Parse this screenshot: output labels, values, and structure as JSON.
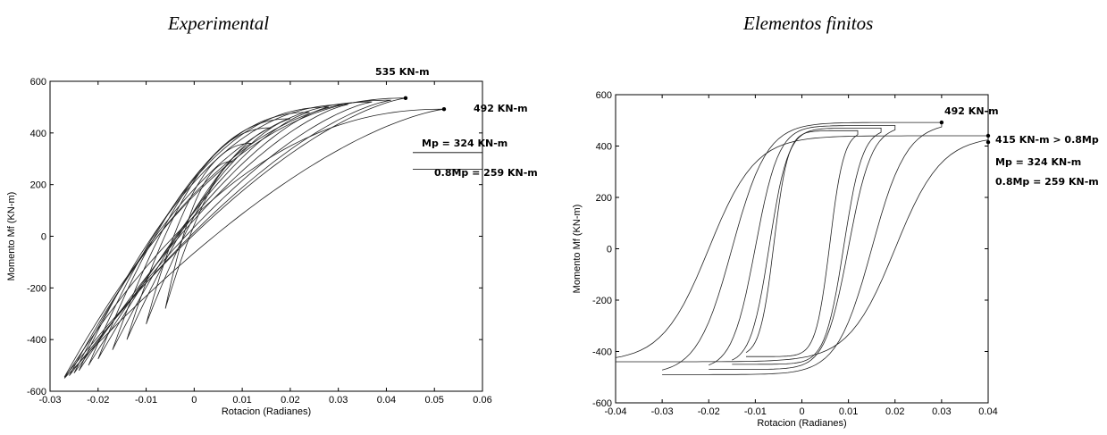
{
  "titles": {
    "left": "Experimental",
    "right": "Elementos finitos"
  },
  "colors": {
    "curve": "#222222",
    "axes": "#000000",
    "background": "#ffffff"
  },
  "chart_data": [
    {
      "type": "line",
      "title": "Experimental",
      "xlabel": "Rotacion (Radianes)",
      "ylabel": "Momento Mf (KN-m)",
      "xlim": [
        -0.03,
        0.06
      ],
      "ylim": [
        -600,
        600
      ],
      "xticks": [
        "-0.03",
        "-0.02",
        "-0.01",
        "0",
        "0.01",
        "0.02",
        "0.03",
        "0.04",
        "0.05",
        "0.06"
      ],
      "yticks": [
        "600",
        "400",
        "200",
        "0",
        "-200",
        "-400",
        "-600"
      ],
      "grid": false,
      "annotations": [
        "535 KN-m",
        "492 KN-m",
        "Mp = 324 KN-m",
        "0.8Mp = 259 KN-m"
      ],
      "peak_points": [
        {
          "x": 0.044,
          "y": 535
        },
        {
          "x": 0.052,
          "y": 492
        }
      ],
      "cycles": [
        {
          "xmin": -0.006,
          "xmax": 0.008,
          "ymin": -280,
          "ymax": 290
        },
        {
          "xmin": -0.01,
          "xmax": 0.012,
          "ymin": -340,
          "ymax": 360
        },
        {
          "xmin": -0.014,
          "xmax": 0.016,
          "ymin": -400,
          "ymax": 420
        },
        {
          "xmin": -0.017,
          "xmax": 0.02,
          "ymin": -440,
          "ymax": 455
        },
        {
          "xmin": -0.02,
          "xmax": 0.024,
          "ymin": -475,
          "ymax": 480
        },
        {
          "xmin": -0.022,
          "xmax": 0.028,
          "ymin": -500,
          "ymax": 500
        },
        {
          "xmin": -0.024,
          "xmax": 0.032,
          "ymin": -520,
          "ymax": 510
        },
        {
          "xmin": -0.025,
          "xmax": 0.037,
          "ymin": -530,
          "ymax": 520
        },
        {
          "xmin": -0.026,
          "xmax": 0.041,
          "ymin": -540,
          "ymax": 527
        },
        {
          "xmin": -0.027,
          "xmax": 0.044,
          "ymin": -545,
          "ymax": 535
        },
        {
          "xmin": -0.027,
          "xmax": 0.052,
          "ymin": -550,
          "ymax": 492
        }
      ]
    },
    {
      "type": "line",
      "title": "Elementos finitos",
      "xlabel": "Rotacion (Radianes)",
      "ylabel": "Momento Mf (KN-m)",
      "xlim": [
        -0.04,
        0.04
      ],
      "ylim": [
        -600,
        600
      ],
      "xticks": [
        "-0.04",
        "-0.03",
        "-0.02",
        "-0.01",
        "0",
        "0.01",
        "0.02",
        "0.03",
        "0.04"
      ],
      "yticks": [
        "600",
        "400",
        "200",
        "0",
        "-200",
        "-400",
        "-600"
      ],
      "grid": false,
      "annotations": [
        "492 KN-m",
        "415 KN-m > 0.8Mp",
        "Mp = 324 KN-m",
        "0.8Mp = 259 KN-m"
      ],
      "peak_points": [
        {
          "x": 0.03,
          "y": 492
        },
        {
          "x": 0.04,
          "y": 415
        },
        {
          "x": 0.04,
          "y": 440
        }
      ],
      "cycles": [
        {
          "xmin": -0.012,
          "xmax": 0.012,
          "ymin": -420,
          "ymax": 460
        },
        {
          "xmin": -0.015,
          "xmax": 0.017,
          "ymin": -450,
          "ymax": 470
        },
        {
          "xmin": -0.02,
          "xmax": 0.02,
          "ymin": -470,
          "ymax": 480
        },
        {
          "xmin": -0.03,
          "xmax": 0.03,
          "ymin": -490,
          "ymax": 492
        },
        {
          "xmin": -0.04,
          "xmax": 0.04,
          "ymin": -440,
          "ymax": 440
        }
      ]
    }
  ]
}
